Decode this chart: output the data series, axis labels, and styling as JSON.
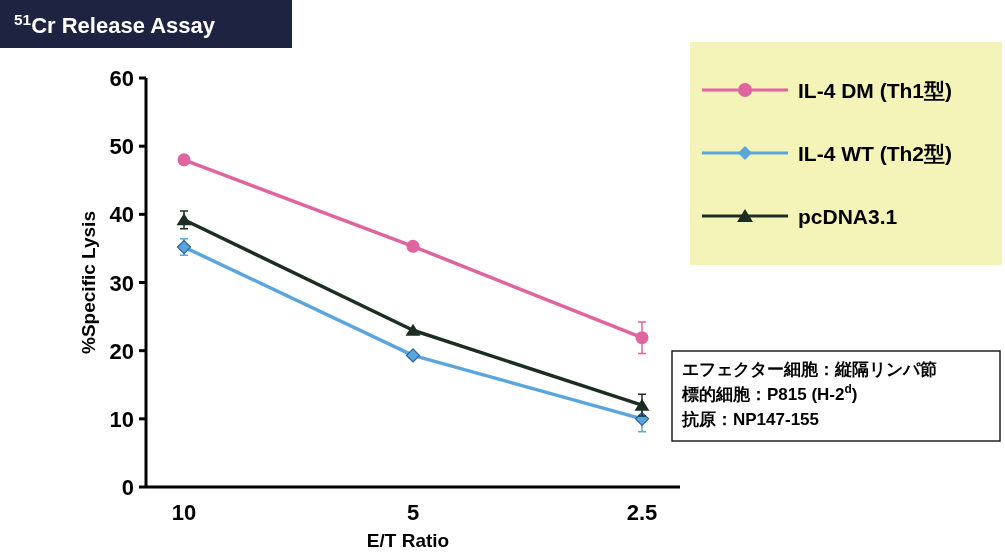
{
  "chart_data": {
    "type": "line",
    "title": "$^{51}$Cr Release Assay",
    "xlabel": "E/T Ratio",
    "ylabel": "%Specific Lysis",
    "categories": [
      "10",
      "5",
      "2.5"
    ],
    "series": [
      {
        "name": "IL-4 DM (Th1型)",
        "color": "#e0649e",
        "marker": "circle",
        "values": [
          48.0,
          35.3,
          21.9
        ],
        "errors": [
          null,
          null,
          2.3
        ]
      },
      {
        "name": "IL-4 WT (Th2型)",
        "color": "#5aa6dc",
        "marker": "diamond",
        "values": [
          35.2,
          19.3,
          10.0
        ],
        "errors": [
          1.2,
          null,
          1.9
        ]
      },
      {
        "name": "pcDNA3.1",
        "color": "#1c2e22",
        "marker": "triangle",
        "values": [
          39.2,
          23.0,
          12.0
        ],
        "errors": [
          1.3,
          null,
          1.6
        ]
      }
    ],
    "ylim": [
      0,
      60
    ],
    "yticks": [
      0,
      10,
      20,
      30,
      40,
      50,
      60
    ],
    "grid": false,
    "legend": "top right",
    "annotations": [
      "エフェクター細胞：縦隔リンパ節",
      "標的細胞：P815 (H-2$^{d}$)",
      "抗原：NP147-155"
    ]
  }
}
